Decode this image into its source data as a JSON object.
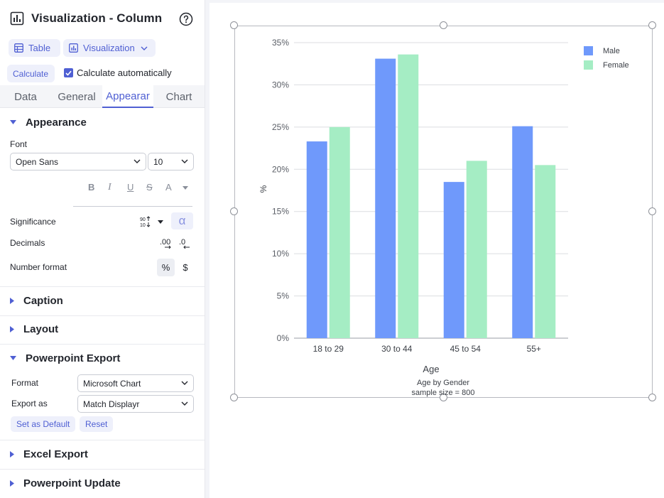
{
  "panel": {
    "title": "Visualization - Column",
    "view_buttons": {
      "table": "Table",
      "visualization": "Visualization"
    },
    "calculate_button": "Calculate",
    "calculate_automatically": "Calculate automatically",
    "tabs": [
      "Data",
      "General",
      "Appearar",
      "Chart"
    ],
    "active_tab": "Appearar",
    "appearance": {
      "title": "Appearance",
      "font_label": "Font",
      "font_value": "Open Sans",
      "font_size": "10",
      "format_buttons": [
        "B",
        "I",
        "U",
        "S",
        "A"
      ],
      "significance_label": "Significance",
      "decimals_label": "Decimals",
      "number_format_label": "Number format",
      "alpha_symbol": "α",
      "percent_symbol": "%",
      "dollar_symbol": "$"
    },
    "sections": {
      "caption": "Caption",
      "layout": "Layout",
      "powerpoint_export": "Powerpoint Export",
      "excel_export": "Excel Export",
      "powerpoint_update": "Powerpoint Update"
    },
    "powerpoint": {
      "format_label": "Format",
      "format_value": "Microsoft Chart",
      "export_as_label": "Export as",
      "export_as_value": "Match Displayr",
      "set_default": "Set as Default",
      "reset": "Reset"
    }
  },
  "colors": {
    "male": "#6f99fb",
    "female": "#a5edc4",
    "accent": "#4f5fd3"
  },
  "chart_data": {
    "type": "bar",
    "categories": [
      "18 to 29",
      "30 to 44",
      "45 to 54",
      "55+"
    ],
    "series": [
      {
        "name": "Male",
        "values": [
          23.3,
          33.1,
          18.5,
          25.1
        ]
      },
      {
        "name": "Female",
        "values": [
          25.0,
          33.6,
          21.0,
          20.5
        ]
      }
    ],
    "yticks": [
      "0%",
      "5%",
      "10%",
      "15%",
      "20%",
      "25%",
      "30%",
      "35%"
    ],
    "ylim": [
      0,
      35
    ],
    "xlabel": "Age",
    "ylabel": "%",
    "footnote_1": "Age by Gender",
    "footnote_2": "sample size = 800",
    "grid": true,
    "legend": "top-right"
  }
}
